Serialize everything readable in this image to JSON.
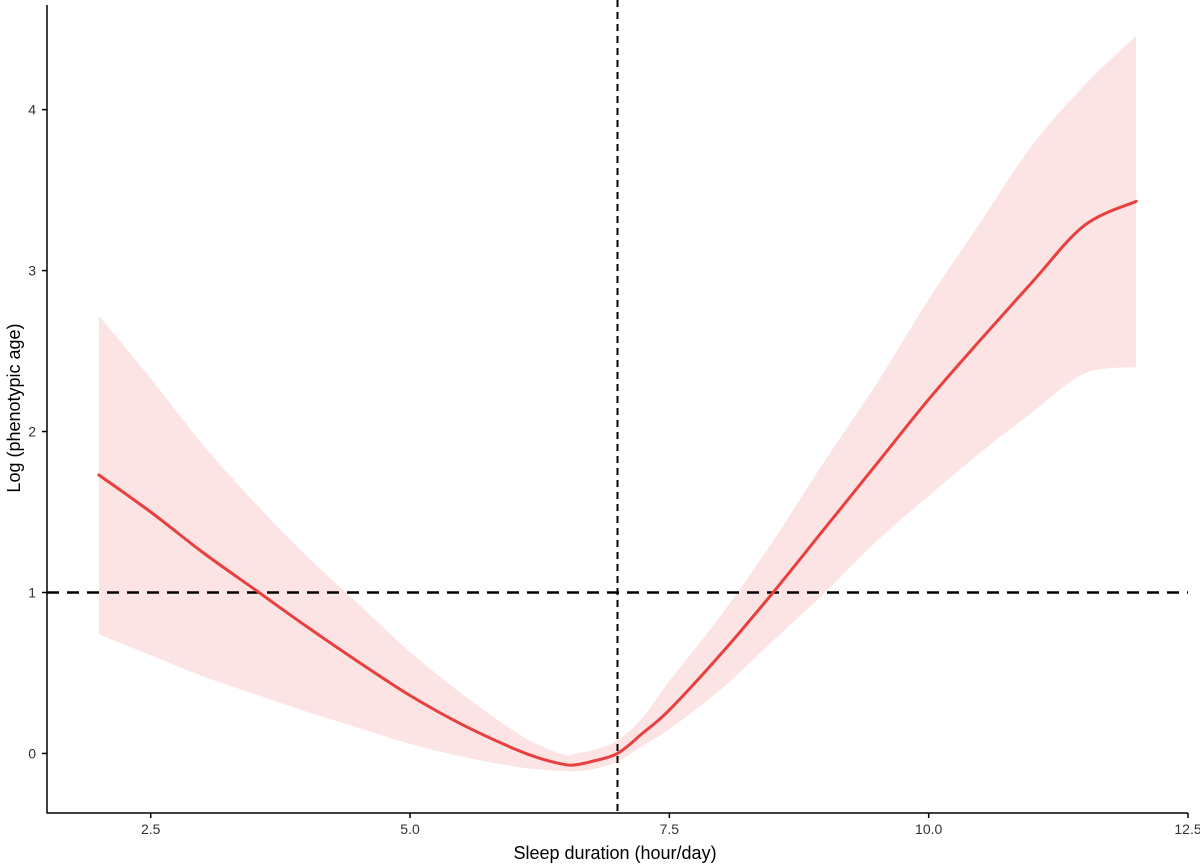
{
  "chart_data": {
    "type": "line",
    "title": "",
    "xlabel": "Sleep duration (hour/day)",
    "ylabel": "Log (phenotypic age)",
    "xlim": [
      1.5,
      12.5
    ],
    "ylim": [
      -0.37,
      4.65
    ],
    "x_ticks": [
      2.5,
      5.0,
      7.5,
      10.0,
      12.5
    ],
    "x_tick_labels": [
      "2.5",
      "5.0",
      "7.5",
      "10.0",
      "12.5"
    ],
    "y_ticks": [
      0,
      1,
      2,
      3,
      4
    ],
    "y_tick_labels": [
      "0",
      "1",
      "2",
      "3",
      "4"
    ],
    "grid": false,
    "legend": "none",
    "reference_lines": {
      "vertical_x": 7.0,
      "horizontal_y": 1.0
    },
    "series": [
      {
        "x": [
          2.0,
          2.5,
          3.0,
          3.5,
          4.0,
          4.5,
          5.0,
          5.5,
          6.0,
          6.25,
          6.5,
          6.6,
          6.75,
          7.0,
          7.25,
          7.5,
          8.0,
          8.5,
          9.0,
          9.5,
          10.0,
          10.5,
          11.0,
          11.5,
          12.0
        ],
        "y": [
          1.73,
          1.5,
          1.25,
          1.02,
          0.79,
          0.57,
          0.36,
          0.18,
          0.03,
          -0.03,
          -0.07,
          -0.07,
          -0.05,
          0.0,
          0.13,
          0.27,
          0.62,
          1.0,
          1.4,
          1.8,
          2.2,
          2.57,
          2.93,
          3.28,
          3.43
        ],
        "ci_lower": [
          0.74,
          0.61,
          0.48,
          0.37,
          0.26,
          0.16,
          0.06,
          -0.02,
          -0.08,
          -0.1,
          -0.11,
          -0.11,
          -0.1,
          -0.05,
          0.05,
          0.15,
          0.4,
          0.7,
          1.0,
          1.32,
          1.6,
          1.87,
          2.12,
          2.36,
          2.4
        ],
        "ci_upper": [
          2.72,
          2.33,
          1.92,
          1.56,
          1.23,
          0.93,
          0.63,
          0.37,
          0.14,
          0.05,
          -0.01,
          0.0,
          0.02,
          0.08,
          0.23,
          0.45,
          0.86,
          1.32,
          1.82,
          2.3,
          2.82,
          3.3,
          3.78,
          4.15,
          4.46
        ]
      }
    ],
    "colors": {
      "line": "#e8403f",
      "band": "#fde4e4",
      "axis": "#000000",
      "reference": "#000000"
    }
  }
}
